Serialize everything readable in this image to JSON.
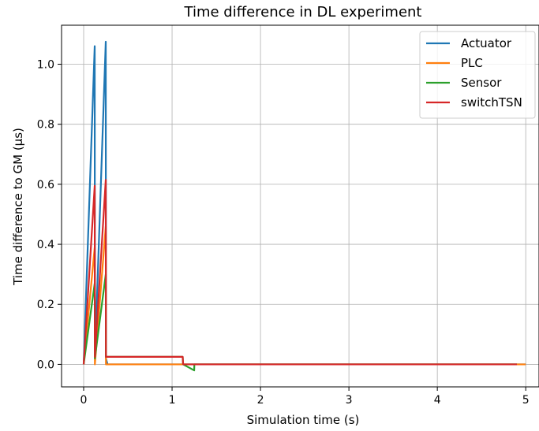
{
  "chart_data": {
    "type": "line",
    "title": "Time difference in DL experiment",
    "xlabel": "Simulation time (s)",
    "ylabel": "Time difference to GM (µs)",
    "xlim": [
      -0.25,
      5.15
    ],
    "ylim": [
      -0.075,
      1.13
    ],
    "xticks": [
      0,
      1,
      2,
      3,
      4,
      5
    ],
    "xtick_labels": [
      "0",
      "1",
      "2",
      "3",
      "4",
      "5"
    ],
    "yticks": [
      0.0,
      0.2,
      0.4,
      0.6,
      0.8,
      1.0
    ],
    "ytick_labels": [
      "0.0",
      "0.2",
      "0.4",
      "0.6",
      "0.8",
      "1.0"
    ],
    "grid": true,
    "legend_position": "top-right",
    "series": [
      {
        "name": "Actuator",
        "color": "#1f77b4",
        "x": [
          0.0,
          0.125,
          0.127,
          0.25,
          0.252,
          0.27,
          5.0
        ],
        "y": [
          0.0,
          1.06,
          0.02,
          1.075,
          0.02,
          0.0,
          0.0
        ]
      },
      {
        "name": "PLC",
        "color": "#ff7f0e",
        "x": [
          0.0,
          0.125,
          0.127,
          0.25,
          0.252,
          0.27,
          1.13,
          4.9,
          5.0
        ],
        "y": [
          0.0,
          0.39,
          0.0,
          0.46,
          0.0,
          0.0,
          0.0,
          0.0,
          0.0
        ]
      },
      {
        "name": "Sensor",
        "color": "#2ca02c",
        "x": [
          0.0,
          0.125,
          0.127,
          0.25,
          0.252,
          0.27,
          1.12,
          1.125,
          1.25,
          1.252,
          1.26,
          4.9
        ],
        "y": [
          0.0,
          0.27,
          0.02,
          0.3,
          0.025,
          0.025,
          0.025,
          0.0,
          -0.02,
          0.0,
          0.0,
          0.0
        ]
      },
      {
        "name": "switchTSN",
        "color": "#d62728",
        "x": [
          0.0,
          0.125,
          0.127,
          0.25,
          0.252,
          0.27,
          0.5,
          1.12,
          1.125,
          1.13,
          4.9
        ],
        "y": [
          0.0,
          0.595,
          0.025,
          0.615,
          0.025,
          0.025,
          0.025,
          0.025,
          0.0,
          0.0,
          0.0
        ]
      }
    ]
  }
}
